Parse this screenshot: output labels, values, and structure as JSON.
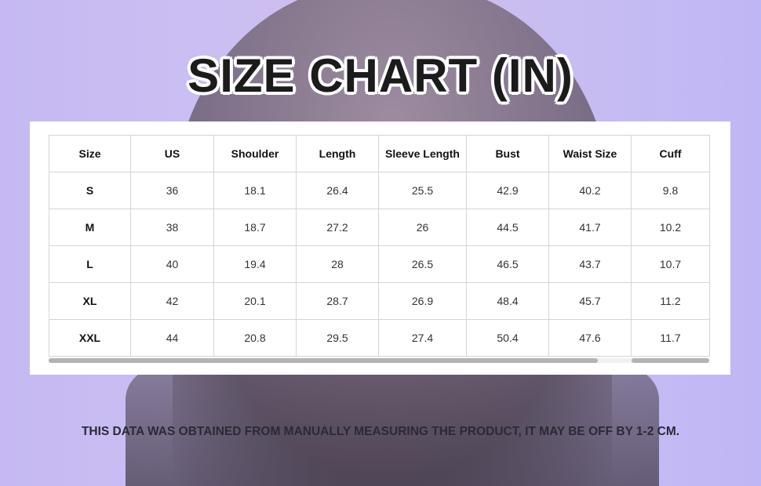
{
  "title": "SIZE CHART (IN)",
  "table": {
    "headers": [
      "Size",
      "US",
      "Shoulder",
      "Length",
      "Sleeve Length",
      "Bust",
      "Waist Size",
      "Cuff"
    ],
    "rows": [
      [
        "S",
        "36",
        "18.1",
        "26.4",
        "25.5",
        "42.9",
        "40.2",
        "9.8"
      ],
      [
        "M",
        "38",
        "18.7",
        "27.2",
        "26",
        "44.5",
        "41.7",
        "10.2"
      ],
      [
        "L",
        "40",
        "19.4",
        "28",
        "26.5",
        "46.5",
        "43.7",
        "10.7"
      ],
      [
        "XL",
        "42",
        "20.1",
        "28.7",
        "26.9",
        "48.4",
        "45.7",
        "11.2"
      ],
      [
        "XXL",
        "44",
        "20.8",
        "29.5",
        "27.4",
        "50.4",
        "47.6",
        "11.7"
      ]
    ]
  },
  "note": "THIS DATA WAS OBTAINED FROM MANUALLY MEASURING THE PRODUCT, IT MAY BE OFF BY 1-2 CM."
}
